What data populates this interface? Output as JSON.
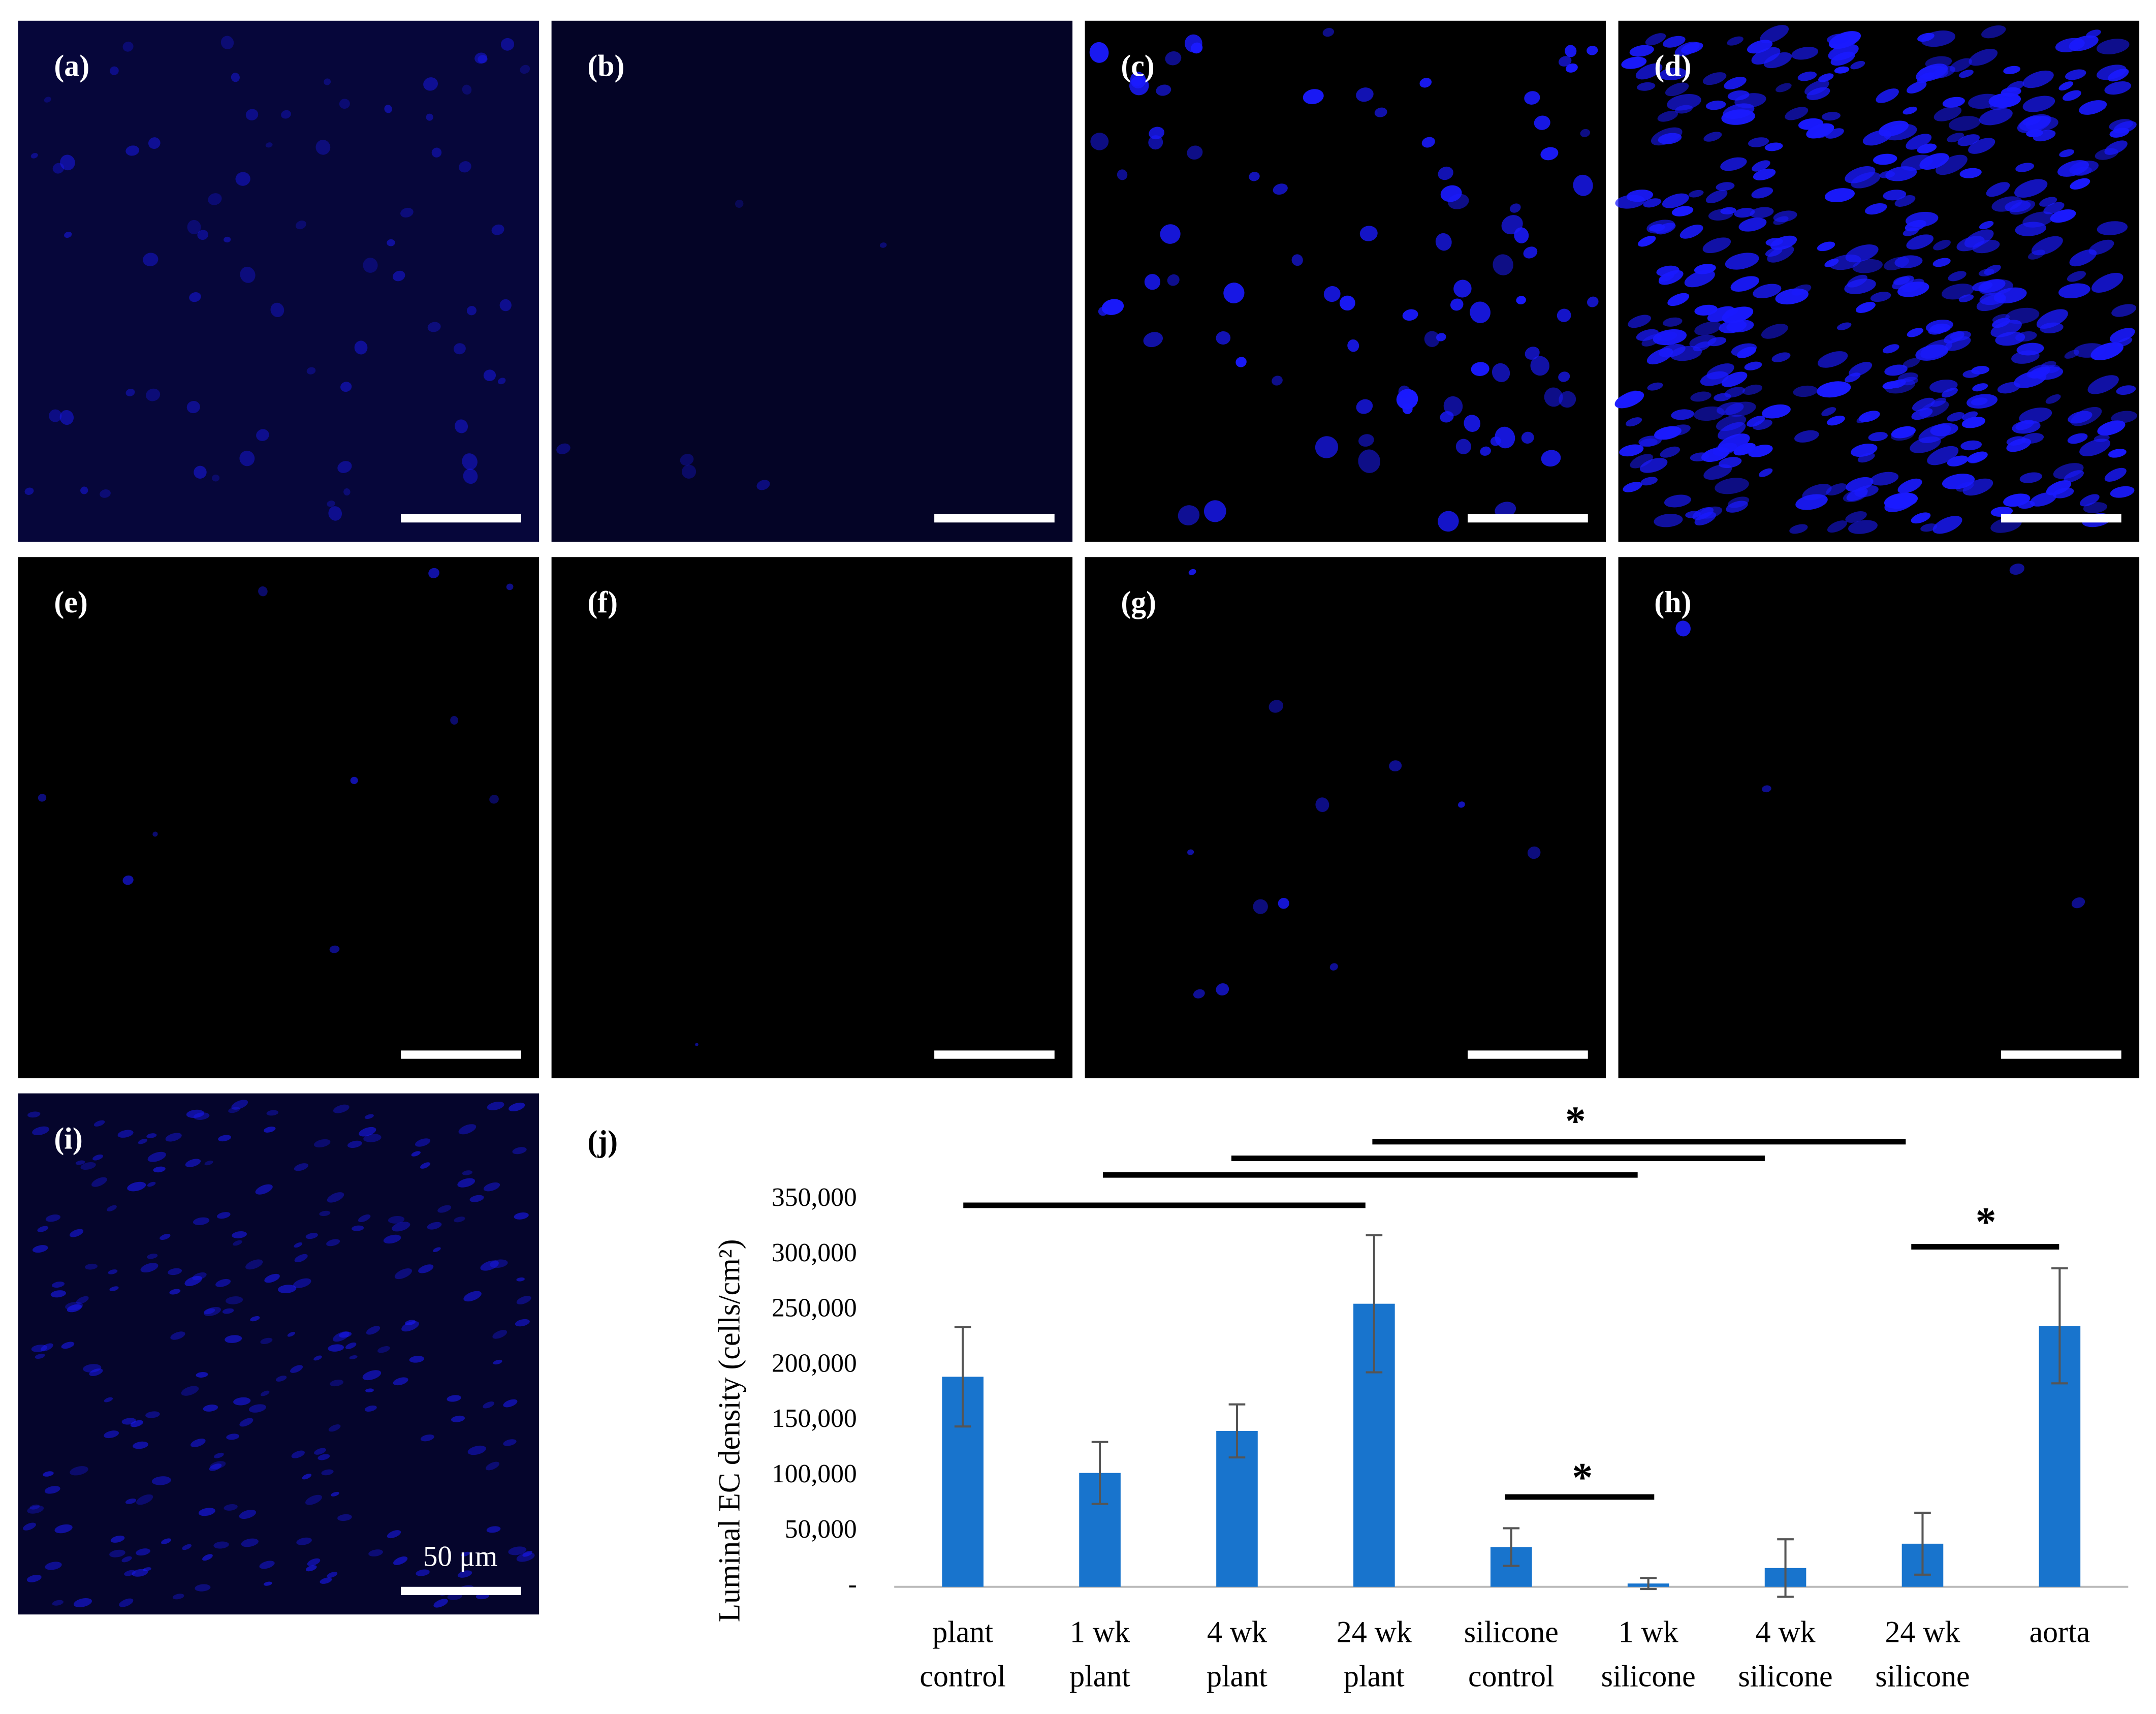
{
  "figure": {
    "panel_labels": [
      "(a)",
      "(b)",
      "(c)",
      "(d)",
      "(e)",
      "(f)",
      "(g)",
      "(h)",
      "(i)",
      "(j)"
    ],
    "scale_label": "50 μm"
  },
  "chart_data": {
    "type": "bar",
    "y_label": "Luminal EC density (cells/cm²)",
    "categories": [
      [
        "plant",
        "control"
      ],
      [
        "1 wk",
        "plant"
      ],
      [
        "4 wk",
        "plant"
      ],
      [
        "24 wk",
        "plant"
      ],
      [
        "silicone",
        "control"
      ],
      [
        "1 wk",
        "silicone"
      ],
      [
        "4 wk",
        "silicone"
      ],
      [
        "24 wk",
        "silicone"
      ],
      [
        "aorta"
      ]
    ],
    "values": [
      190000,
      103000,
      141000,
      256000,
      36000,
      3000,
      17000,
      39000,
      236000
    ],
    "errors": [
      45000,
      28000,
      24000,
      62000,
      17000,
      5000,
      26000,
      28000,
      52000
    ],
    "color": "#1874cd",
    "ylim": [
      0,
      350000
    ],
    "yticks": [
      {
        "value": 0,
        "label": "-"
      },
      {
        "value": 50000,
        "label": "50,000"
      },
      {
        "value": 100000,
        "label": "100,000"
      },
      {
        "value": 150000,
        "label": "150,000"
      },
      {
        "value": 200000,
        "label": "200,000"
      },
      {
        "value": 250000,
        "label": "250,000"
      },
      {
        "value": 300000,
        "label": "300,000"
      },
      {
        "value": 350000,
        "label": "350,000"
      }
    ],
    "annotations": [
      "*",
      "*",
      "*"
    ]
  }
}
